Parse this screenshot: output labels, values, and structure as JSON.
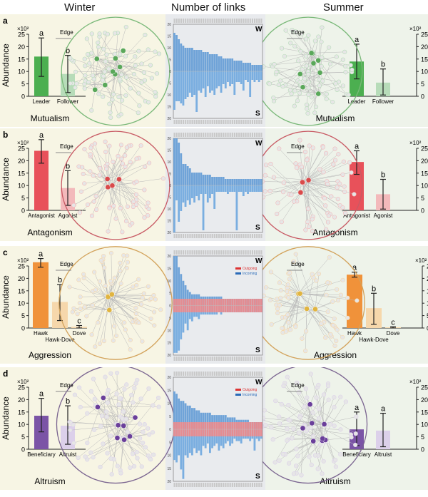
{
  "headers": {
    "winter": "Winter",
    "links": "Number of links",
    "summer": "Summer"
  },
  "edge_label": "Edge",
  "axis_label": "Abundance",
  "scale_label": "×10²",
  "legend": {
    "outgoing": "Outgoing",
    "incoming": "Incoming"
  },
  "season_marks": {
    "top": "W",
    "bottom": "S"
  },
  "chart_data": [
    {
      "panel": "a",
      "type": "bar",
      "interaction": "Mutualism",
      "color": "#4caf50",
      "light_color": "#b7dcb9",
      "bg": "#f7f5e4",
      "circle": "#79b878",
      "node": "#5aa85a",
      "winter": {
        "categories": [
          "Leader",
          "Follower"
        ],
        "values": [
          16,
          9
        ],
        "err_low": [
          8,
          1.5
        ],
        "err_high": [
          23.5,
          16.5
        ],
        "sig": [
          "a",
          "b"
        ]
      },
      "summer": {
        "categories": [
          "Leader",
          "Follower"
        ],
        "values": [
          14,
          5.5
        ],
        "err_low": [
          7,
          0.5
        ],
        "err_high": [
          21,
          11
        ],
        "sig": [
          "a",
          "b"
        ]
      },
      "links": {
        "incoming_w": [
          18,
          17,
          15,
          13,
          12,
          11,
          11,
          11,
          11,
          10,
          10,
          10,
          10,
          9,
          9,
          9,
          8,
          8,
          8,
          8,
          7,
          7,
          6,
          6,
          6,
          6,
          6,
          5,
          5,
          5,
          5,
          4,
          4,
          4,
          4,
          3,
          3,
          3,
          3,
          3
        ],
        "incoming_s": [
          18,
          14,
          14,
          15,
          16,
          13,
          12,
          10,
          12,
          11,
          19,
          9,
          10,
          8,
          12,
          7,
          10,
          9,
          11,
          8,
          7,
          10,
          6,
          8,
          5,
          7,
          6,
          11,
          5,
          5,
          6,
          9,
          4,
          5,
          12,
          4,
          5,
          4,
          5,
          4
        ]
      },
      "ylim": [
        0,
        25
      ],
      "ylabel": "Abundance"
    },
    {
      "panel": "b",
      "type": "bar",
      "interaction": "Antagonism",
      "color": "#e8515a",
      "light_color": "#f3b9bb",
      "bg": "#f7f5e4",
      "circle": "#c85a64",
      "node": "#d94a4a",
      "winter": {
        "categories": [
          "Antagonist",
          "Agonist"
        ],
        "values": [
          24,
          9
        ],
        "err_low": [
          19,
          2
        ],
        "err_high": [
          28.5,
          16
        ],
        "sig": [
          "a",
          "b"
        ]
      },
      "summer": {
        "categories": [
          "Antagonist",
          "Agonist"
        ],
        "values": [
          19.5,
          6.5
        ],
        "err_low": [
          14.5,
          0.5
        ],
        "err_high": [
          24,
          12.5
        ],
        "sig": [
          "a",
          "b"
        ]
      },
      "links": {
        "incoming_w": [
          22,
          22,
          20,
          15,
          10,
          10,
          9,
          8,
          6,
          6,
          6,
          6,
          6,
          5,
          5,
          5,
          5,
          4,
          4,
          4,
          4,
          4,
          4,
          3,
          3,
          3,
          3,
          3,
          3,
          3,
          3,
          3,
          3,
          3,
          3,
          3,
          3,
          3,
          3,
          3
        ],
        "incoming_s": [
          22,
          7,
          17,
          12,
          8,
          10,
          7,
          9,
          6,
          8,
          5,
          7,
          4,
          21,
          4,
          8,
          6,
          4,
          11,
          3,
          3,
          3,
          3,
          3,
          4,
          3,
          3,
          3,
          21,
          3,
          3,
          5,
          3,
          4,
          3,
          3,
          3,
          3,
          3,
          3
        ]
      },
      "ylim": [
        0,
        25
      ],
      "ylabel": "Abundance"
    },
    {
      "panel": "c",
      "type": "bar",
      "interaction": "Aggression",
      "color": "#f0923a",
      "light_color": "#f6d7ab",
      "bg": "#f7f5e4",
      "circle": "#d3a35c",
      "node": "#e0b440",
      "winter": {
        "categories": [
          "Hawk",
          "Hawk-Dove",
          "Dove"
        ],
        "values": [
          26.5,
          10.5,
          0.5
        ],
        "err_low": [
          24.5,
          3,
          0
        ],
        "err_high": [
          28,
          17.5,
          1
        ],
        "sig": [
          "a",
          "b",
          "c"
        ]
      },
      "summer": {
        "categories": [
          "Hawk",
          "Hawk-Dove",
          "Dove"
        ],
        "values": [
          21.5,
          8,
          0.3
        ],
        "err_low": [
          20.5,
          1.5,
          0
        ],
        "err_high": [
          22.5,
          14,
          0.5
        ],
        "sig": [
          "a",
          "b",
          "c"
        ]
      },
      "links": {
        "incoming_w": [
          22,
          22,
          17,
          14,
          11,
          9,
          7,
          6,
          5,
          5,
          5,
          5,
          4,
          4,
          4,
          4,
          4,
          4,
          4,
          4,
          4,
          4,
          3,
          3,
          3,
          3,
          3,
          3,
          3,
          3,
          3,
          3,
          3,
          3,
          3,
          3,
          3,
          3,
          3,
          3
        ],
        "incoming_s": [
          21,
          21,
          20,
          15,
          12,
          8,
          11,
          6,
          7,
          5,
          5,
          6,
          4,
          4,
          4,
          4,
          4,
          4,
          4,
          4,
          3,
          4,
          3,
          3,
          3,
          3,
          3,
          3,
          3,
          3,
          3,
          3,
          3,
          3,
          3,
          3,
          3,
          3,
          3,
          3
        ],
        "outgoing_band": 3
      }
    },
    {
      "panel": "d",
      "type": "bar",
      "interaction": "Altruism",
      "color": "#7b54a6",
      "light_color": "#dcd0ea",
      "bg": "#f7f5e4",
      "circle": "#7a6490",
      "node": "#6a3f9a",
      "winter": {
        "categories": [
          "Beneficiary",
          "Altruist"
        ],
        "values": [
          13.5,
          9.5
        ],
        "err_low": [
          7,
          2
        ],
        "err_high": [
          20.5,
          17.5
        ],
        "sig": [
          "a",
          "b"
        ]
      },
      "summer": {
        "categories": [
          "Beneficiary",
          "Altruist"
        ],
        "values": [
          8,
          7.5
        ],
        "err_low": [
          1.5,
          1
        ],
        "err_high": [
          15,
          14.5
        ],
        "sig": [
          "a",
          "a"
        ]
      },
      "links": {
        "incoming_w": [
          16,
          15,
          13,
          12,
          12,
          11,
          10,
          10,
          9,
          9,
          8,
          8,
          7,
          7,
          7,
          7,
          7,
          6,
          6,
          6,
          6,
          6,
          6,
          6,
          5,
          5,
          5,
          5,
          4,
          4,
          4,
          4,
          4,
          4,
          3,
          3,
          3,
          3,
          3,
          3
        ],
        "incoming_s": [
          13,
          14,
          11,
          17,
          21,
          11,
          12,
          10,
          11,
          8,
          10,
          9,
          11,
          7,
          8,
          6,
          10,
          8,
          7,
          6,
          9,
          7,
          8,
          6,
          5,
          7,
          6,
          4,
          5,
          5,
          6,
          4,
          4,
          4,
          5,
          4,
          9,
          4,
          5,
          4
        ],
        "outgoing_band": 3
      }
    }
  ]
}
